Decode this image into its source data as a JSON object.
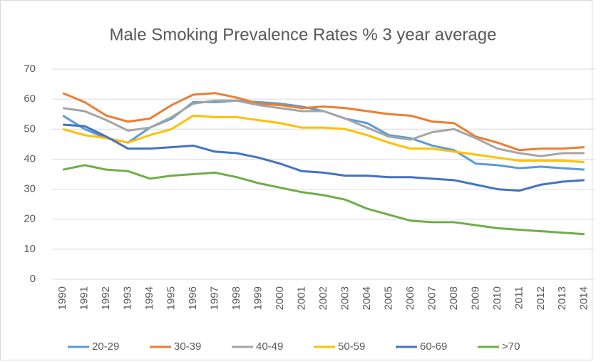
{
  "chart_data": {
    "type": "line",
    "title": "Male Smoking Prevalence Rates % 3 year average",
    "categories": [
      "1990",
      "1991",
      "1992",
      "1993",
      "1994",
      "1995",
      "1996",
      "1997",
      "1998",
      "1999",
      "2000",
      "2001",
      "2002",
      "2003",
      "2004",
      "2005",
      "2006",
      "2007",
      "2008",
      "2009",
      "2010",
      "2011",
      "2012",
      "2013",
      "2014"
    ],
    "series": [
      {
        "name": "20-29",
        "color": "#5B9BD5",
        "values": [
          54.5,
          50,
          47,
          45.5,
          50.5,
          53.5,
          59,
          59,
          59.5,
          59,
          58.5,
          57.5,
          56,
          53.5,
          52,
          48,
          47,
          44.5,
          43,
          38.5,
          38,
          37,
          37.5,
          37,
          36.5
        ]
      },
      {
        "name": "30-39",
        "color": "#ED7D31",
        "values": [
          62,
          59,
          54.5,
          52.5,
          53.5,
          58,
          61.5,
          62,
          60.5,
          58.5,
          58,
          57,
          57.5,
          57,
          56,
          55,
          54.5,
          52.5,
          52,
          47.5,
          45.5,
          43,
          43.5,
          43.5,
          44
        ]
      },
      {
        "name": "40-49",
        "color": "#A5A5A5",
        "values": [
          57,
          56,
          53,
          49.5,
          50.5,
          54,
          58.5,
          59.5,
          59.5,
          58,
          57,
          56,
          56,
          53.5,
          50.5,
          47.5,
          46.5,
          49,
          50,
          47,
          43.5,
          42,
          41,
          42,
          42
        ]
      },
      {
        "name": "50-59",
        "color": "#FFC000",
        "values": [
          50,
          48,
          47,
          45.5,
          48,
          50,
          54.5,
          54,
          54,
          53,
          52,
          50.5,
          50.5,
          50,
          48,
          45.5,
          43.5,
          43.5,
          42.5,
          41.5,
          40.5,
          39.5,
          39.5,
          39.5,
          39
        ]
      },
      {
        "name": "60-69",
        "color": "#4472C4",
        "values": [
          51.5,
          51,
          47.5,
          43.5,
          43.5,
          44,
          44.5,
          42.5,
          42,
          40.5,
          38.5,
          36,
          35.5,
          34.5,
          34.5,
          34,
          34,
          33.5,
          33,
          31.5,
          30,
          29.5,
          31.5,
          32.5,
          33
        ]
      },
      {
        "name": ">70",
        "color": "#70AD47",
        "values": [
          36.5,
          38,
          36.5,
          36,
          33.5,
          34.5,
          35,
          35.5,
          34,
          32,
          30.5,
          29,
          28,
          26.5,
          23.5,
          21.5,
          19.5,
          19,
          19,
          18,
          17,
          16.5,
          16,
          15.5,
          15
        ]
      }
    ],
    "ylim": [
      0,
      70
    ],
    "yticks": [
      0,
      10,
      20,
      30,
      40,
      50,
      60,
      70
    ],
    "grid": true,
    "legend": "bottom"
  }
}
